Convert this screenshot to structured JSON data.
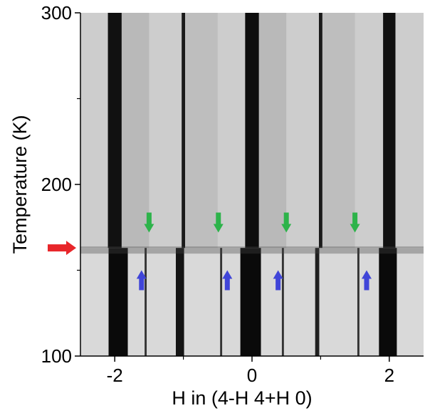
{
  "chart_data": {
    "type": "heatmap",
    "xlabel": "H in (4-H 4+H 0)",
    "ylabel": "Temperature (K)",
    "xlim": [
      -2.5,
      2.5
    ],
    "ylim": [
      100,
      300
    ],
    "xticks": [
      -2,
      0,
      2
    ],
    "xminor_ticks": [
      -1,
      1
    ],
    "yticks": [
      100,
      200,
      300
    ],
    "yminor_ticks": [
      150,
      250
    ],
    "background_color": "#cdcdcd",
    "low_background_color": "#d9d9d9",
    "transition_temperature": 163,
    "transition_color": "#e8262a",
    "bands": [
      {
        "center": -1.75,
        "width": 0.5,
        "tmin": 163,
        "tmax": 300,
        "color": "#a9a9a9"
      },
      {
        "center": -0.75,
        "width": 0.5,
        "tmin": 163,
        "tmax": 300,
        "color": "#b3b3b3"
      },
      {
        "center": 0.25,
        "width": 0.5,
        "tmin": 163,
        "tmax": 300,
        "color": "#a9a9a9"
      },
      {
        "center": 1.25,
        "width": 0.5,
        "tmin": 163,
        "tmax": 300,
        "color": "#b3b3b3"
      },
      {
        "center": -2,
        "width": 0.2,
        "tmin": 163,
        "tmax": 300,
        "color": "#111111"
      },
      {
        "center": -1,
        "width": 0.05,
        "tmin": 163,
        "tmax": 300,
        "color": "#1a1a1a"
      },
      {
        "center": 0,
        "width": 0.2,
        "tmin": 163,
        "tmax": 300,
        "color": "#0d0d0d"
      },
      {
        "center": 1,
        "width": 0.05,
        "tmin": 163,
        "tmax": 300,
        "color": "#1a1a1a"
      },
      {
        "center": 2,
        "width": 0.18,
        "tmin": 163,
        "tmax": 300,
        "color": "#111111"
      },
      {
        "center": -1.95,
        "width": 0.28,
        "tmin": 100,
        "tmax": 163,
        "color": "#0a0a0a"
      },
      {
        "center": -1.05,
        "width": 0.12,
        "tmin": 100,
        "tmax": 163,
        "color": "#151515"
      },
      {
        "center": -0.02,
        "width": 0.3,
        "tmin": 100,
        "tmax": 163,
        "color": "#0a0a0a"
      },
      {
        "center": 0.95,
        "width": 0.06,
        "tmin": 100,
        "tmax": 163,
        "color": "#202020"
      },
      {
        "center": 1.98,
        "width": 0.26,
        "tmin": 100,
        "tmax": 163,
        "color": "#0a0a0a"
      },
      {
        "center": -1.55,
        "width": 0.03,
        "tmin": 100,
        "tmax": 163,
        "color": "#333333"
      },
      {
        "center": -0.45,
        "width": 0.03,
        "tmin": 100,
        "tmax": 163,
        "color": "#333333"
      },
      {
        "center": 0.45,
        "width": 0.03,
        "tmin": 100,
        "tmax": 163,
        "color": "#333333"
      },
      {
        "center": 1.55,
        "width": 0.03,
        "tmin": 100,
        "tmax": 163,
        "color": "#333333"
      }
    ],
    "markers": [
      {
        "h": -1.5,
        "temperature": 172,
        "direction": "down",
        "color": "#2db34a"
      },
      {
        "h": -0.49,
        "temperature": 172,
        "direction": "down",
        "color": "#2db34a"
      },
      {
        "h": 0.5,
        "temperature": 172,
        "direction": "down",
        "color": "#2db34a"
      },
      {
        "h": 1.5,
        "temperature": 172,
        "direction": "down",
        "color": "#2db34a"
      },
      {
        "h": -1.61,
        "temperature": 150,
        "direction": "up",
        "color": "#4045d8"
      },
      {
        "h": -0.36,
        "temperature": 150,
        "direction": "up",
        "color": "#4045d8"
      },
      {
        "h": 0.38,
        "temperature": 150,
        "direction": "up",
        "color": "#4045d8"
      },
      {
        "h": 1.67,
        "temperature": 150,
        "direction": "up",
        "color": "#4045d8"
      }
    ]
  }
}
